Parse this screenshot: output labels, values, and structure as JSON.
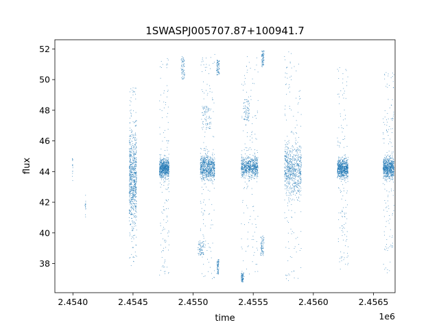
{
  "chart_data": {
    "type": "scatter",
    "title": "1SWASPJ005707.87+100941.7",
    "xlabel": "time",
    "ylabel": "flux",
    "x_offset_label": "1e6",
    "xlim": [
      2453850,
      2456680
    ],
    "ylim": [
      36.1,
      52.6
    ],
    "x_ticks": [
      2.454,
      2.4545,
      2.455,
      2.4555,
      2.456,
      2.4565
    ],
    "x_tick_labels": [
      "2.4540",
      "2.4545",
      "2.4550",
      "2.4555",
      "2.4560",
      "2.4565"
    ],
    "y_ticks": [
      38,
      40,
      42,
      44,
      46,
      48,
      50,
      52
    ],
    "y_tick_labels": [
      "38",
      "40",
      "42",
      "44",
      "46",
      "48",
      "50",
      "52"
    ],
    "grid": false,
    "marker_color": "#1f77b4",
    "series": [
      {
        "seasons": [
          {
            "x_start": 2453995,
            "x_end": 2454000,
            "core_low": 43.6,
            "core_high": 45.4,
            "spread_low": 43.4,
            "spread_high": 45.6,
            "groups": []
          },
          {
            "x_start": 2454100,
            "x_end": 2454108,
            "core_low": 41.0,
            "core_high": 42.5,
            "spread_low": 40.8,
            "spread_high": 42.6,
            "groups": []
          },
          {
            "x_start": 2454468,
            "x_end": 2454530,
            "core_low": 39.0,
            "core_high": 48.0,
            "spread_low": 37.8,
            "spread_high": 49.5,
            "groups": []
          },
          {
            "x_start": 2454720,
            "x_end": 2454800,
            "core_low": 43.3,
            "core_high": 45.2,
            "spread_low": 37.0,
            "spread_high": 51.5,
            "groups": [
              {
                "x_start": 2454900,
                "x_end": 2454930,
                "y_low": 50.0,
                "y_high": 51.5
              }
            ]
          },
          {
            "x_start": 2455060,
            "x_end": 2455180,
            "core_low": 43.0,
            "core_high": 45.5,
            "spread_low": 37.0,
            "spread_high": 51.8,
            "groups": [
              {
                "x_start": 2455070,
                "x_end": 2455150,
                "y_low": 46.8,
                "y_high": 48.3
              },
              {
                "x_start": 2455040,
                "x_end": 2455090,
                "y_low": 38.5,
                "y_high": 39.5
              },
              {
                "x_start": 2455200,
                "x_end": 2455215,
                "y_low": 37.3,
                "y_high": 38.3
              },
              {
                "x_start": 2455195,
                "x_end": 2455220,
                "y_low": 50.3,
                "y_high": 51.3
              }
            ]
          },
          {
            "x_start": 2455400,
            "x_end": 2455540,
            "core_low": 43.3,
            "core_high": 45.3,
            "spread_low": 36.9,
            "spread_high": 51.5,
            "groups": [
              {
                "x_start": 2455420,
                "x_end": 2455470,
                "y_low": 47.3,
                "y_high": 48.7
              },
              {
                "x_start": 2455400,
                "x_end": 2455420,
                "y_low": 36.8,
                "y_high": 37.4
              },
              {
                "x_start": 2455560,
                "x_end": 2455590,
                "y_low": 38.5,
                "y_high": 39.8
              },
              {
                "x_start": 2455570,
                "x_end": 2455590,
                "y_low": 50.8,
                "y_high": 51.9
              }
            ]
          },
          {
            "x_start": 2455760,
            "x_end": 2455900,
            "core_low": 41.5,
            "core_high": 46.8,
            "spread_low": 36.8,
            "spread_high": 51.9,
            "groups": []
          },
          {
            "x_start": 2456200,
            "x_end": 2456290,
            "core_low": 43.2,
            "core_high": 45.2,
            "spread_low": 37.6,
            "spread_high": 50.8,
            "groups": []
          },
          {
            "x_start": 2456580,
            "x_end": 2456670,
            "core_low": 43.2,
            "core_high": 45.3,
            "spread_low": 37.2,
            "spread_high": 50.7,
            "groups": []
          }
        ]
      }
    ]
  }
}
